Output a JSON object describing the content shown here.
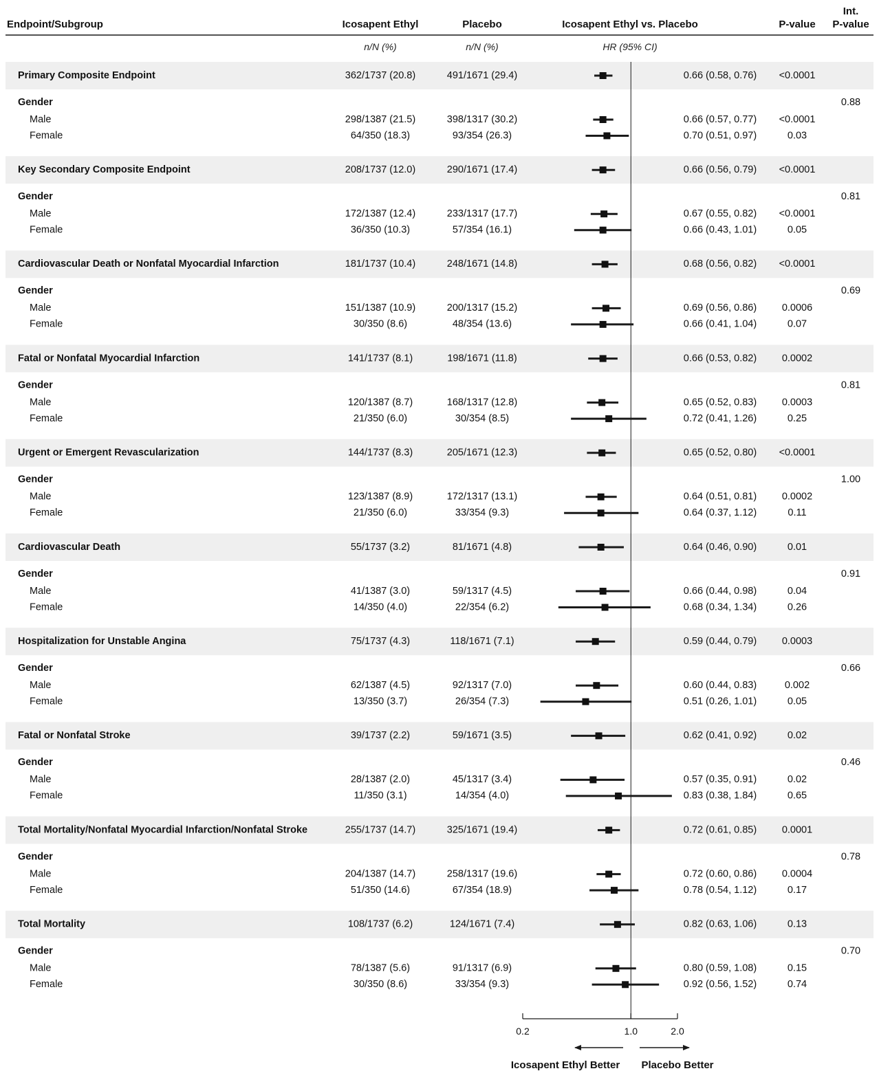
{
  "headers": {
    "endpoint": "Endpoint/Subgroup",
    "ice": "Icosapent Ethyl",
    "placebo": "Placebo",
    "comparison": "Icosapent Ethyl vs. Placebo",
    "pvalue": "P-value",
    "int_pvalue_line1": "Int.",
    "int_pvalue_line2": "P-value"
  },
  "subheaders": {
    "ice": "n/N (%)",
    "placebo": "n/N (%)",
    "hr": "HR (95% CI)"
  },
  "axis": {
    "scale": "log",
    "range": [
      0.2,
      2.0
    ],
    "ticks": [
      {
        "value": 0.2,
        "label": "0.2"
      },
      {
        "value": 1.0,
        "label": "1.0"
      },
      {
        "value": 2.0,
        "label": "2.0"
      }
    ],
    "reference_value": 1.0,
    "left_label": "Icosapent Ethyl Better",
    "right_label": "Placebo Better"
  },
  "colors": {
    "band": "#efefef",
    "line": "#1a1a1a"
  },
  "chart_data": {
    "type": "forest",
    "rows": [
      {
        "kind": "endpoint",
        "label": "Primary Composite Endpoint",
        "ice": "362/1737 (20.8)",
        "placebo": "491/1671 (29.4)",
        "hr_text": "0.66 (0.58, 0.76)",
        "p": "<0.0001",
        "int_p": "",
        "hr": 0.66,
        "lo": 0.58,
        "hi": 0.76
      },
      {
        "kind": "group",
        "label": "Gender",
        "int_p": "0.88"
      },
      {
        "kind": "sub",
        "label": "Male",
        "ice": "298/1387 (21.5)",
        "placebo": "398/1317 (30.2)",
        "hr_text": "0.66 (0.57, 0.77)",
        "p": "<0.0001",
        "hr": 0.66,
        "lo": 0.57,
        "hi": 0.77
      },
      {
        "kind": "sub",
        "label": "Female",
        "ice": "64/350 (18.3)",
        "placebo": "93/354 (26.3)",
        "hr_text": "0.70 (0.51, 0.97)",
        "p": "0.03",
        "hr": 0.7,
        "lo": 0.51,
        "hi": 0.97
      },
      {
        "kind": "endpoint",
        "label": "Key Secondary Composite Endpoint",
        "ice": "208/1737 (12.0)",
        "placebo": "290/1671 (17.4)",
        "hr_text": "0.66 (0.56, 0.79)",
        "p": "<0.0001",
        "int_p": "",
        "hr": 0.66,
        "lo": 0.56,
        "hi": 0.79
      },
      {
        "kind": "group",
        "label": "Gender",
        "int_p": "0.81"
      },
      {
        "kind": "sub",
        "label": "Male",
        "ice": "172/1387 (12.4)",
        "placebo": "233/1317 (17.7)",
        "hr_text": "0.67 (0.55, 0.82)",
        "p": "<0.0001",
        "hr": 0.67,
        "lo": 0.55,
        "hi": 0.82
      },
      {
        "kind": "sub",
        "label": "Female",
        "ice": "36/350 (10.3)",
        "placebo": "57/354 (16.1)",
        "hr_text": "0.66 (0.43, 1.01)",
        "p": "0.05",
        "hr": 0.66,
        "lo": 0.43,
        "hi": 1.01
      },
      {
        "kind": "endpoint",
        "label": "Cardiovascular Death or Nonfatal Myocardial Infarction",
        "ice": "181/1737 (10.4)",
        "placebo": "248/1671 (14.8)",
        "hr_text": "0.68 (0.56, 0.82)",
        "p": "<0.0001",
        "int_p": "",
        "hr": 0.68,
        "lo": 0.56,
        "hi": 0.82
      },
      {
        "kind": "group",
        "label": "Gender",
        "int_p": "0.69"
      },
      {
        "kind": "sub",
        "label": "Male",
        "ice": "151/1387 (10.9)",
        "placebo": "200/1317 (15.2)",
        "hr_text": "0.69 (0.56, 0.86)",
        "p": "0.0006",
        "hr": 0.69,
        "lo": 0.56,
        "hi": 0.86
      },
      {
        "kind": "sub",
        "label": "Female",
        "ice": "30/350 (8.6)",
        "placebo": "48/354 (13.6)",
        "hr_text": "0.66 (0.41, 1.04)",
        "p": "0.07",
        "hr": 0.66,
        "lo": 0.41,
        "hi": 1.04
      },
      {
        "kind": "endpoint",
        "label": "Fatal or Nonfatal Myocardial Infarction",
        "ice": "141/1737 (8.1)",
        "placebo": "198/1671 (11.8)",
        "hr_text": "0.66 (0.53, 0.82)",
        "p": "0.0002",
        "int_p": "",
        "hr": 0.66,
        "lo": 0.53,
        "hi": 0.82
      },
      {
        "kind": "group",
        "label": "Gender",
        "int_p": "0.81"
      },
      {
        "kind": "sub",
        "label": "Male",
        "ice": "120/1387 (8.7)",
        "placebo": "168/1317 (12.8)",
        "hr_text": "0.65 (0.52, 0.83)",
        "p": "0.0003",
        "hr": 0.65,
        "lo": 0.52,
        "hi": 0.83
      },
      {
        "kind": "sub",
        "label": "Female",
        "ice": "21/350 (6.0)",
        "placebo": "30/354 (8.5)",
        "hr_text": "0.72 (0.41, 1.26)",
        "p": "0.25",
        "hr": 0.72,
        "lo": 0.41,
        "hi": 1.26
      },
      {
        "kind": "endpoint",
        "label": "Urgent or Emergent Revascularization",
        "ice": "144/1737 (8.3)",
        "placebo": "205/1671 (12.3)",
        "hr_text": "0.65 (0.52, 0.80)",
        "p": "<0.0001",
        "int_p": "",
        "hr": 0.65,
        "lo": 0.52,
        "hi": 0.8
      },
      {
        "kind": "group",
        "label": "Gender",
        "int_p": "1.00"
      },
      {
        "kind": "sub",
        "label": "Male",
        "ice": "123/1387 (8.9)",
        "placebo": "172/1317 (13.1)",
        "hr_text": "0.64 (0.51, 0.81)",
        "p": "0.0002",
        "hr": 0.64,
        "lo": 0.51,
        "hi": 0.81
      },
      {
        "kind": "sub",
        "label": "Female",
        "ice": "21/350 (6.0)",
        "placebo": "33/354 (9.3)",
        "hr_text": "0.64 (0.37, 1.12)",
        "p": "0.11",
        "hr": 0.64,
        "lo": 0.37,
        "hi": 1.12
      },
      {
        "kind": "endpoint",
        "label": "Cardiovascular Death",
        "ice": "55/1737 (3.2)",
        "placebo": "81/1671 (4.8)",
        "hr_text": "0.64 (0.46, 0.90)",
        "p": "0.01",
        "int_p": "",
        "hr": 0.64,
        "lo": 0.46,
        "hi": 0.9
      },
      {
        "kind": "group",
        "label": "Gender",
        "int_p": "0.91"
      },
      {
        "kind": "sub",
        "label": "Male",
        "ice": "41/1387 (3.0)",
        "placebo": "59/1317 (4.5)",
        "hr_text": "0.66 (0.44, 0.98)",
        "p": "0.04",
        "hr": 0.66,
        "lo": 0.44,
        "hi": 0.98
      },
      {
        "kind": "sub",
        "label": "Female",
        "ice": "14/350 (4.0)",
        "placebo": "22/354 (6.2)",
        "hr_text": "0.68 (0.34, 1.34)",
        "p": "0.26",
        "hr": 0.68,
        "lo": 0.34,
        "hi": 1.34
      },
      {
        "kind": "endpoint",
        "label": "Hospitalization for Unstable Angina",
        "ice": "75/1737 (4.3)",
        "placebo": "118/1671 (7.1)",
        "hr_text": "0.59 (0.44, 0.79)",
        "p": "0.0003",
        "int_p": "",
        "hr": 0.59,
        "lo": 0.44,
        "hi": 0.79
      },
      {
        "kind": "group",
        "label": "Gender",
        "int_p": "0.66"
      },
      {
        "kind": "sub",
        "label": "Male",
        "ice": "62/1387 (4.5)",
        "placebo": "92/1317 (7.0)",
        "hr_text": "0.60 (0.44, 0.83)",
        "p": "0.002",
        "hr": 0.6,
        "lo": 0.44,
        "hi": 0.83
      },
      {
        "kind": "sub",
        "label": "Female",
        "ice": "13/350 (3.7)",
        "placebo": "26/354 (7.3)",
        "hr_text": "0.51 (0.26, 1.01)",
        "p": "0.05",
        "hr": 0.51,
        "lo": 0.26,
        "hi": 1.01
      },
      {
        "kind": "endpoint",
        "label": "Fatal or Nonfatal Stroke",
        "ice": "39/1737 (2.2)",
        "placebo": "59/1671 (3.5)",
        "hr_text": "0.62 (0.41, 0.92)",
        "p": "0.02",
        "int_p": "",
        "hr": 0.62,
        "lo": 0.41,
        "hi": 0.92
      },
      {
        "kind": "group",
        "label": "Gender",
        "int_p": "0.46"
      },
      {
        "kind": "sub",
        "label": "Male",
        "ice": "28/1387 (2.0)",
        "placebo": "45/1317 (3.4)",
        "hr_text": "0.57 (0.35, 0.91)",
        "p": "0.02",
        "hr": 0.57,
        "lo": 0.35,
        "hi": 0.91
      },
      {
        "kind": "sub",
        "label": "Female",
        "ice": "11/350 (3.1)",
        "placebo": "14/354 (4.0)",
        "hr_text": "0.83 (0.38, 1.84)",
        "p": "0.65",
        "hr": 0.83,
        "lo": 0.38,
        "hi": 1.84
      },
      {
        "kind": "endpoint",
        "label": "Total Mortality/Nonfatal Myocardial Infarction/Nonfatal Stroke",
        "ice": "255/1737 (14.7)",
        "placebo": "325/1671 (19.4)",
        "hr_text": "0.72 (0.61, 0.85)",
        "p": "0.0001",
        "int_p": "",
        "hr": 0.72,
        "lo": 0.61,
        "hi": 0.85
      },
      {
        "kind": "group",
        "label": "Gender",
        "int_p": "0.78"
      },
      {
        "kind": "sub",
        "label": "Male",
        "ice": "204/1387 (14.7)",
        "placebo": "258/1317 (19.6)",
        "hr_text": "0.72 (0.60, 0.86)",
        "p": "0.0004",
        "hr": 0.72,
        "lo": 0.6,
        "hi": 0.86
      },
      {
        "kind": "sub",
        "label": "Female",
        "ice": "51/350 (14.6)",
        "placebo": "67/354 (18.9)",
        "hr_text": "0.78 (0.54, 1.12)",
        "p": "0.17",
        "hr": 0.78,
        "lo": 0.54,
        "hi": 1.12
      },
      {
        "kind": "endpoint",
        "label": "Total Mortality",
        "ice": "108/1737 (6.2)",
        "placebo": "124/1671 (7.4)",
        "hr_text": "0.82 (0.63, 1.06)",
        "p": "0.13",
        "int_p": "",
        "hr": 0.82,
        "lo": 0.63,
        "hi": 1.06
      },
      {
        "kind": "group",
        "label": "Gender",
        "int_p": "0.70"
      },
      {
        "kind": "sub",
        "label": "Male",
        "ice": "78/1387 (5.6)",
        "placebo": "91/1317 (6.9)",
        "hr_text": "0.80 (0.59, 1.08)",
        "p": "0.15",
        "hr": 0.8,
        "lo": 0.59,
        "hi": 1.08
      },
      {
        "kind": "sub",
        "label": "Female",
        "ice": "30/350 (8.6)",
        "placebo": "33/354 (9.3)",
        "hr_text": "0.92 (0.56, 1.52)",
        "p": "0.74",
        "hr": 0.92,
        "lo": 0.56,
        "hi": 1.52
      }
    ]
  }
}
